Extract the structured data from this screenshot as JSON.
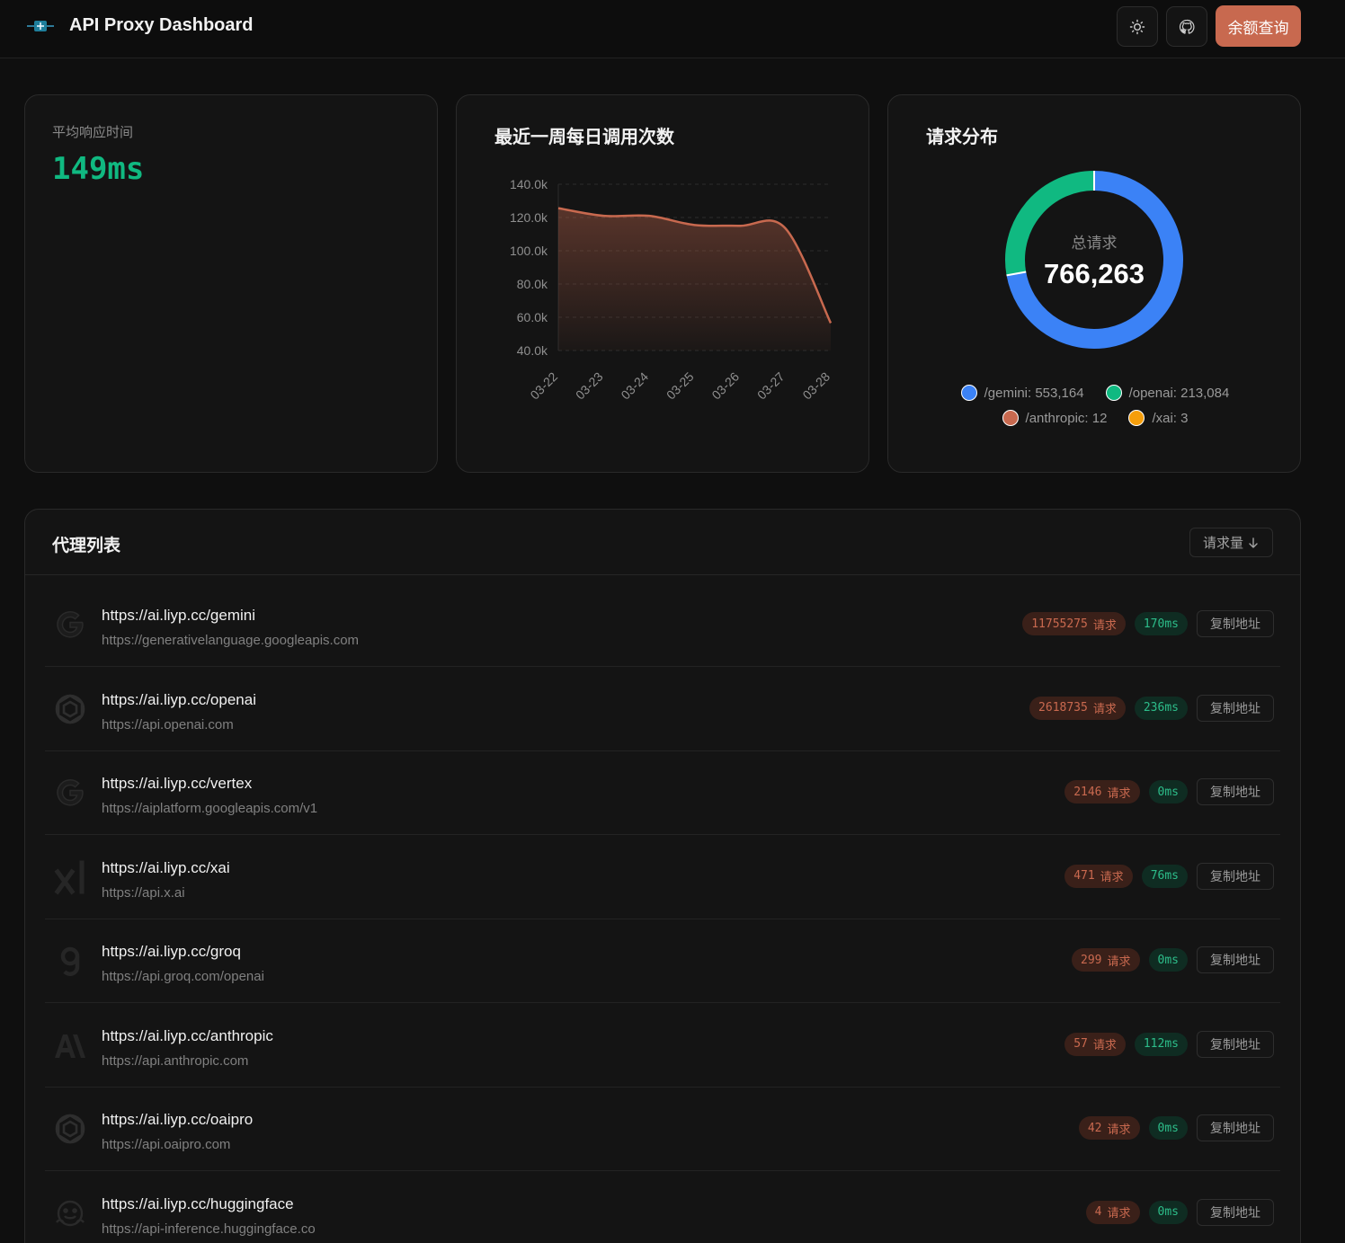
{
  "header": {
    "title": "API Proxy Dashboard",
    "quota_button": "余额查询",
    "theme_icon": "sun-icon",
    "github_icon": "github-icon"
  },
  "avg_response": {
    "label": "平均响应时间",
    "value": "149ms"
  },
  "weekly_calls": {
    "title": "最近一周每日调用次数"
  },
  "distribution": {
    "title": "请求分布",
    "center_label": "总请求",
    "center_value": "766,263",
    "legend": [
      {
        "label": "/gemini: 553,164",
        "color": "#3b82f6"
      },
      {
        "label": "/openai: 213,084",
        "color": "#10b981"
      },
      {
        "label": "/anthropic: 12",
        "color": "#c8694f"
      },
      {
        "label": "/xai: 3",
        "color": "#f59e0b"
      }
    ]
  },
  "proxy_list": {
    "title": "代理列表",
    "sort_label": "请求量",
    "req_unit": "请求",
    "copy_label": "复制地址",
    "rows": [
      {
        "url": "https://ai.liyp.cc/gemini",
        "target": "https://generativelanguage.googleapis.com",
        "requests": "11755275",
        "latency": "170ms",
        "icon": "google-icon"
      },
      {
        "url": "https://ai.liyp.cc/openai",
        "target": "https://api.openai.com",
        "requests": "2618735",
        "latency": "236ms",
        "icon": "openai-icon"
      },
      {
        "url": "https://ai.liyp.cc/vertex",
        "target": "https://aiplatform.googleapis.com/v1",
        "requests": "2146",
        "latency": "0ms",
        "icon": "google-icon"
      },
      {
        "url": "https://ai.liyp.cc/xai",
        "target": "https://api.x.ai",
        "requests": "471",
        "latency": "76ms",
        "icon": "xai-icon"
      },
      {
        "url": "https://ai.liyp.cc/groq",
        "target": "https://api.groq.com/openai",
        "requests": "299",
        "latency": "0ms",
        "icon": "groq-icon"
      },
      {
        "url": "https://ai.liyp.cc/anthropic",
        "target": "https://api.anthropic.com",
        "requests": "57",
        "latency": "112ms",
        "icon": "anthropic-icon"
      },
      {
        "url": "https://ai.liyp.cc/oaipro",
        "target": "https://api.oaipro.com",
        "requests": "42",
        "latency": "0ms",
        "icon": "openai-icon"
      },
      {
        "url": "https://ai.liyp.cc/huggingface",
        "target": "https://api-inference.huggingface.co",
        "requests": "4",
        "latency": "0ms",
        "icon": "huggingface-icon"
      }
    ]
  },
  "chart_data": [
    {
      "type": "area",
      "title": "最近一周每日调用次数",
      "x": [
        "03-22",
        "03-23",
        "03-24",
        "03-25",
        "03-26",
        "03-27",
        "03-28"
      ],
      "series": [
        {
          "values": [
            125600,
            121000,
            121000,
            115500,
            115000,
            113500,
            56500
          ]
        }
      ],
      "yticks": [
        "40.0k",
        "60.0k",
        "80.0k",
        "100.0k",
        "120.0k",
        "140.0k"
      ],
      "ylim": [
        40000,
        140000
      ],
      "grid": true,
      "color": "#c8694f"
    },
    {
      "type": "pie",
      "title": "请求分布",
      "labels": [
        "/gemini",
        "/openai",
        "/anthropic",
        "/xai"
      ],
      "values": [
        553164,
        213084,
        12,
        3
      ],
      "colors": [
        "#3b82f6",
        "#10b981",
        "#c8694f",
        "#f59e0b"
      ]
    }
  ]
}
